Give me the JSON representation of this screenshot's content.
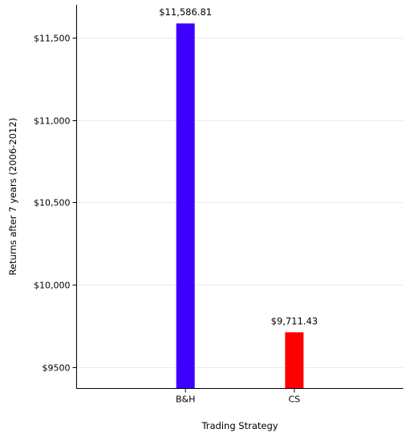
{
  "chart_data": {
    "type": "bar",
    "title": "",
    "xlabel": "Trading Strategy",
    "ylabel": "Returns after 7 years (2006-2012)",
    "categories": [
      "B&H",
      "CS"
    ],
    "values": [
      11586.81,
      9711.43
    ],
    "data_labels": [
      "$11,586.81",
      "$9,711.43"
    ],
    "colors": [
      "#3d00ff",
      "#ff0000"
    ],
    "ylim": [
      9370,
      11700
    ],
    "yticks": [
      9500,
      10000,
      10500,
      11000,
      11500
    ],
    "ytick_labels": [
      "$9500",
      "$10,000",
      "$10,500",
      "$11,000",
      "$11,500"
    ],
    "grid": true,
    "legend": false
  }
}
